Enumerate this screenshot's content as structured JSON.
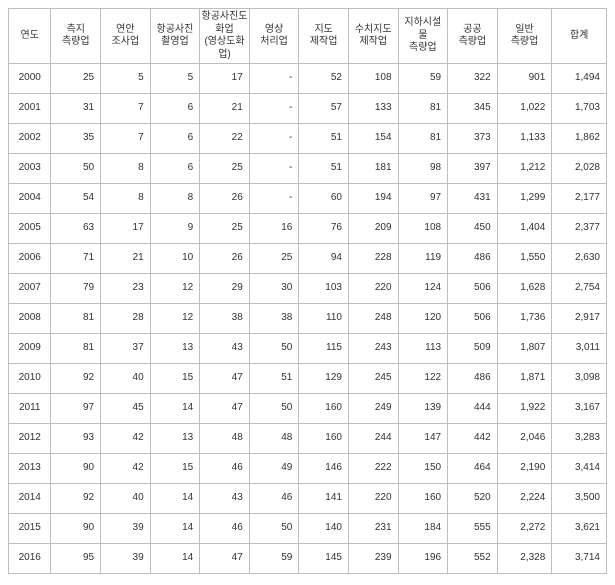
{
  "table": {
    "columns": [
      "연도",
      "측지\n측량업",
      "연안\n조사업",
      "항공사진\n촬영업",
      "항공사진도\n화업\n(영상도화\n업)",
      "영상\n처리업",
      "지도\n제작업",
      "수치지도\n제작업",
      "지하시설\n물\n측량업",
      "공공\n측량업",
      "일반\n측량업",
      "합계"
    ],
    "rows": [
      [
        "2000",
        "25",
        "5",
        "5",
        "17",
        "-",
        "52",
        "108",
        "59",
        "322",
        "901",
        "1,494"
      ],
      [
        "2001",
        "31",
        "7",
        "6",
        "21",
        "-",
        "57",
        "133",
        "81",
        "345",
        "1,022",
        "1,703"
      ],
      [
        "2002",
        "35",
        "7",
        "6",
        "22",
        "-",
        "51",
        "154",
        "81",
        "373",
        "1,133",
        "1,862"
      ],
      [
        "2003",
        "50",
        "8",
        "6",
        "25",
        "-",
        "51",
        "181",
        "98",
        "397",
        "1,212",
        "2,028"
      ],
      [
        "2004",
        "54",
        "8",
        "8",
        "26",
        "-",
        "60",
        "194",
        "97",
        "431",
        "1,299",
        "2,177"
      ],
      [
        "2005",
        "63",
        "17",
        "9",
        "25",
        "16",
        "76",
        "209",
        "108",
        "450",
        "1,404",
        "2,377"
      ],
      [
        "2006",
        "71",
        "21",
        "10",
        "26",
        "25",
        "94",
        "228",
        "119",
        "486",
        "1,550",
        "2,630"
      ],
      [
        "2007",
        "79",
        "23",
        "12",
        "29",
        "30",
        "103",
        "220",
        "124",
        "506",
        "1,628",
        "2,754"
      ],
      [
        "2008",
        "81",
        "28",
        "12",
        "38",
        "38",
        "110",
        "248",
        "120",
        "506",
        "1,736",
        "2,917"
      ],
      [
        "2009",
        "81",
        "37",
        "13",
        "43",
        "50",
        "115",
        "243",
        "113",
        "509",
        "1,807",
        "3,011"
      ],
      [
        "2010",
        "92",
        "40",
        "15",
        "47",
        "51",
        "129",
        "245",
        "122",
        "486",
        "1,871",
        "3,098"
      ],
      [
        "2011",
        "97",
        "45",
        "14",
        "47",
        "50",
        "160",
        "249",
        "139",
        "444",
        "1,922",
        "3,167"
      ],
      [
        "2012",
        "93",
        "42",
        "13",
        "48",
        "48",
        "160",
        "244",
        "147",
        "442",
        "2,046",
        "3,283"
      ],
      [
        "2013",
        "90",
        "42",
        "15",
        "46",
        "49",
        "146",
        "222",
        "150",
        "464",
        "2,190",
        "3,414"
      ],
      [
        "2014",
        "92",
        "40",
        "14",
        "43",
        "46",
        "141",
        "220",
        "160",
        "520",
        "2,224",
        "3,500"
      ],
      [
        "2015",
        "90",
        "39",
        "14",
        "46",
        "50",
        "140",
        "231",
        "184",
        "555",
        "2,272",
        "3,621"
      ],
      [
        "2016",
        "95",
        "39",
        "14",
        "47",
        "59",
        "145",
        "239",
        "196",
        "552",
        "2,328",
        "3,714"
      ]
    ],
    "header_font_size": 10,
    "body_font_size": 10,
    "border_color": "#bfbfbf",
    "text_color": "#333333",
    "background_color": "#ffffff"
  }
}
